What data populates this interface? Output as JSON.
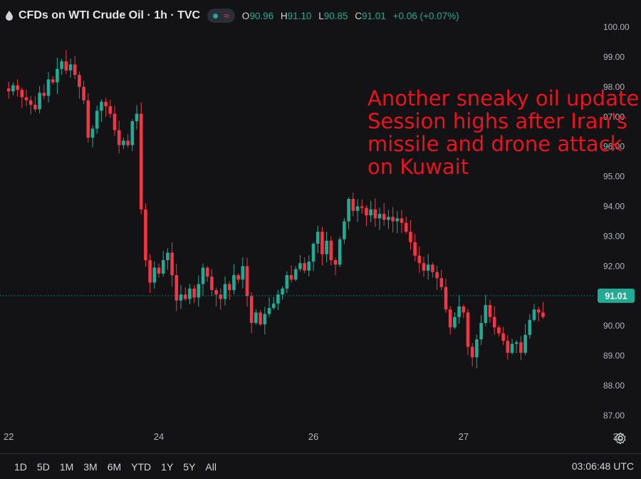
{
  "header": {
    "title": "CFDs on WTI Crude Oil · 1h · TVC",
    "ohlc": [
      {
        "k": "O",
        "v": "90.96"
      },
      {
        "k": "H",
        "v": "91.10"
      },
      {
        "k": "L",
        "v": "90.85"
      },
      {
        "k": "C",
        "v": "91.01"
      }
    ],
    "change": "+0.06 (+0.07%)"
  },
  "annotation": {
    "lines": [
      "Another sneaky oil update.",
      "Session highs after Iran's",
      "missile and drone attack",
      "on Kuwait"
    ]
  },
  "bottom_bar": {
    "ranges": [
      "1D",
      "5D",
      "1M",
      "3M",
      "6M",
      "YTD",
      "1Y",
      "5Y",
      "All"
    ],
    "clock": "03:06:48 UTC"
  },
  "icons": {
    "symbol": "oil-drop-icon",
    "status": "market-open-dot-icon",
    "wave": "wave-icon",
    "settings": "gear-icon"
  },
  "colors": {
    "up": "#22ab94",
    "down": "#f23645",
    "background": "#131316",
    "annotation": "#e8141e"
  },
  "chart_data": {
    "type": "candlestick",
    "title": "CFDs on WTI Crude Oil · 1h · TVC",
    "ylim": [
      86.5,
      100.5
    ],
    "y_ticks": [
      "87.00",
      "88.00",
      "89.00",
      "90.00",
      "91.00",
      "92.00",
      "93.00",
      "94.00",
      "95.00",
      "96.00",
      "97.00",
      "98.00",
      "99.00",
      "100.00"
    ],
    "x_ticks": [
      {
        "label": "22",
        "at": 1
      },
      {
        "label": "24",
        "at": 35
      },
      {
        "label": "26",
        "at": 70
      },
      {
        "label": "27",
        "at": 104
      },
      {
        "label": "28",
        "at": 139
      }
    ],
    "last_price": "91.01",
    "last_price_value": 91.01,
    "closes": [
      97.95,
      97.85,
      98.05,
      97.9,
      97.65,
      97.55,
      97.4,
      97.25,
      97.8,
      97.7,
      98.25,
      98.15,
      98.6,
      98.85,
      98.55,
      98.75,
      98.4,
      98.0,
      97.55,
      96.3,
      96.6,
      97.2,
      97.5,
      97.35,
      97.1,
      96.55,
      96.05,
      96.2,
      96.05,
      96.85,
      97.1,
      93.9,
      92.2,
      91.45,
      91.95,
      91.75,
      92.2,
      92.45,
      91.7,
      90.85,
      91.05,
      90.9,
      91.25,
      90.95,
      91.4,
      91.95,
      91.65,
      91.2,
      91.05,
      90.9,
      91.4,
      91.2,
      91.7,
      91.55,
      92.0,
      91.0,
      90.1,
      90.45,
      90.05,
      90.4,
      90.6,
      90.75,
      91.05,
      91.25,
      91.7,
      91.55,
      91.9,
      92.1,
      91.85,
      92.15,
      92.75,
      93.15,
      92.4,
      92.85,
      92.2,
      92.05,
      92.9,
      93.5,
      94.25,
      93.85,
      94.0,
      93.95,
      93.7,
      93.9,
      93.6,
      93.75,
      93.55,
      93.65,
      93.5,
      93.6,
      93.45,
      93.15,
      92.8,
      92.35,
      92.1,
      91.85,
      92.05,
      91.8,
      91.6,
      91.3,
      90.55,
      89.95,
      90.3,
      90.65,
      90.45,
      89.3,
      88.95,
      89.55,
      90.1,
      90.7,
      90.3,
      89.95,
      89.75,
      89.5,
      89.1,
      89.4,
      89.45,
      89.1,
      89.7,
      90.2,
      90.55,
      90.45,
      90.3,
      90.95,
      91.01
    ]
  }
}
